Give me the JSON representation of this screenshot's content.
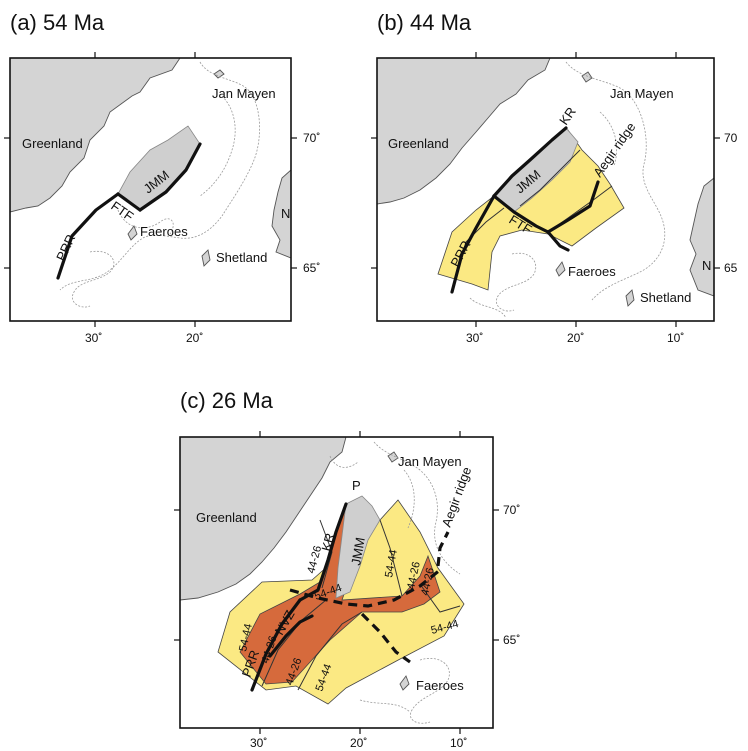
{
  "panels": [
    {
      "title": "(a)  54 Ma",
      "lon_ticks": [
        "30˚",
        "20˚"
      ],
      "lat_ticks": [
        "70˚",
        "65˚"
      ],
      "labels": {
        "jan_mayen": "Jan Mayen",
        "greenland": "Greenland",
        "jmm": "JMM",
        "prr": "PRR",
        "ftf": "FTF",
        "faeroes": "Faeroes",
        "shetland": "Shetland",
        "n": "N"
      }
    },
    {
      "title": "(b)  44 Ma",
      "lon_ticks": [
        "30˚",
        "20˚",
        "10˚"
      ],
      "lat_ticks": [
        "70",
        "65"
      ],
      "labels": {
        "jan_mayen": "Jan Mayen",
        "greenland": "Greenland",
        "kr": "KR",
        "aegir": "Aegir ridge",
        "jmm": "JMM",
        "prr": "PRR",
        "ftf": "FTF",
        "faeroes": "Faeroes",
        "shetland": "Shetland",
        "n": "N"
      }
    },
    {
      "title": "(c)  26 Ma",
      "lon_ticks": [
        "30˚",
        "20˚",
        "10˚"
      ],
      "lat_ticks": [
        "70˚",
        "65˚"
      ],
      "labels": {
        "jan_mayen": "Jan Mayen",
        "greenland": "Greenland",
        "p": "P",
        "kr": "KR",
        "jmm": "JMM",
        "aegir": "Aegir ridge",
        "nvz": "NVZ",
        "prr": "PRR",
        "faeroes": "Faeroes"
      },
      "age_labels": [
        "44-26",
        "54-44",
        "44-26",
        "44-26",
        "54-44",
        "44-26",
        "44-26",
        "54-44",
        "54-44",
        "54-44"
      ]
    }
  ]
}
